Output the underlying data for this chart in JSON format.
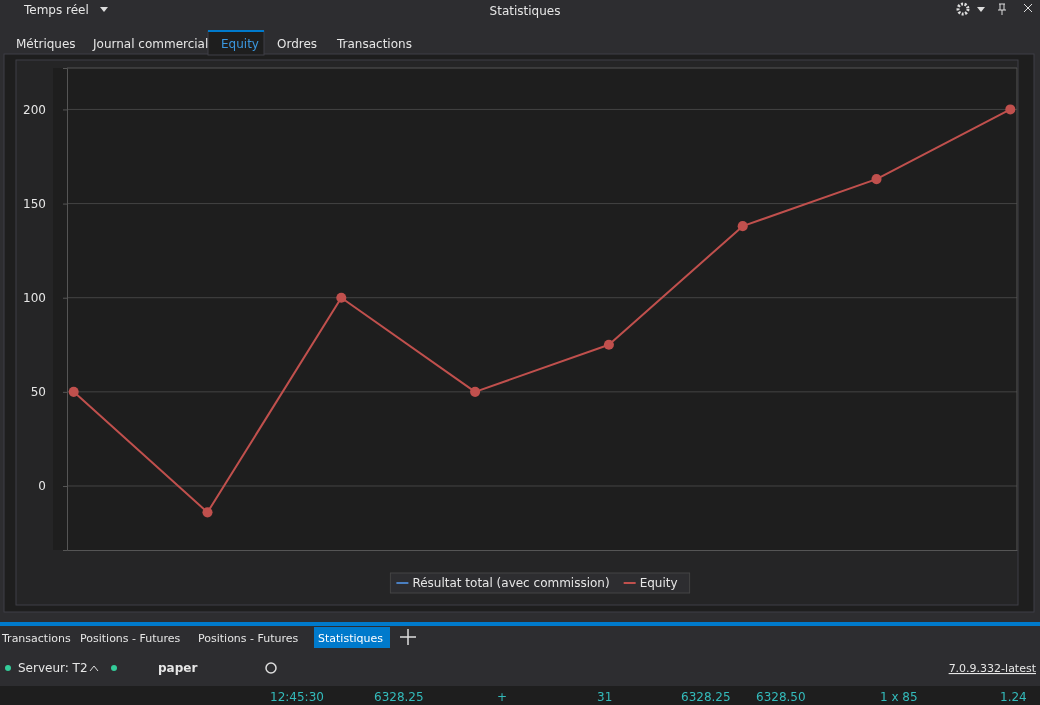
{
  "chart_data": {
    "type": "line",
    "title": "Statistiques",
    "categories": [
      null,
      null,
      null,
      null,
      null,
      null,
      null,
      null
    ],
    "series": [
      {
        "name": "Résultat total (avec commission)",
        "color": "#4a7fc1",
        "values": [
          null,
          null,
          null,
          null,
          null,
          null,
          null,
          null
        ]
      },
      {
        "name": "Equity",
        "color": "#c0504d",
        "values": [
          50,
          -14,
          100,
          50,
          75,
          138,
          163,
          200
        ]
      }
    ],
    "ylim": [
      -34,
      222
    ],
    "yticks": [
      0,
      50,
      100,
      150,
      200
    ],
    "grid": "y",
    "legend": "bottom",
    "marker": "circle",
    "line_style": "solid",
    "tick_labels": "y",
    "annotations": [
      "Temps réel",
      "Métriques",
      "Journal commercial",
      "Equity",
      "Ordres",
      "Transactions",
      "Transactions",
      "Positions - Futures",
      "Positions - Futures",
      "Statistiques",
      "Serveur: T2",
      "paper",
      "7.0.9.332-latest",
      "12:45:30",
      "6328.25",
      "+",
      "31",
      "6328.25",
      "6328.50",
      "1 x 85",
      "1.24"
    ]
  }
}
